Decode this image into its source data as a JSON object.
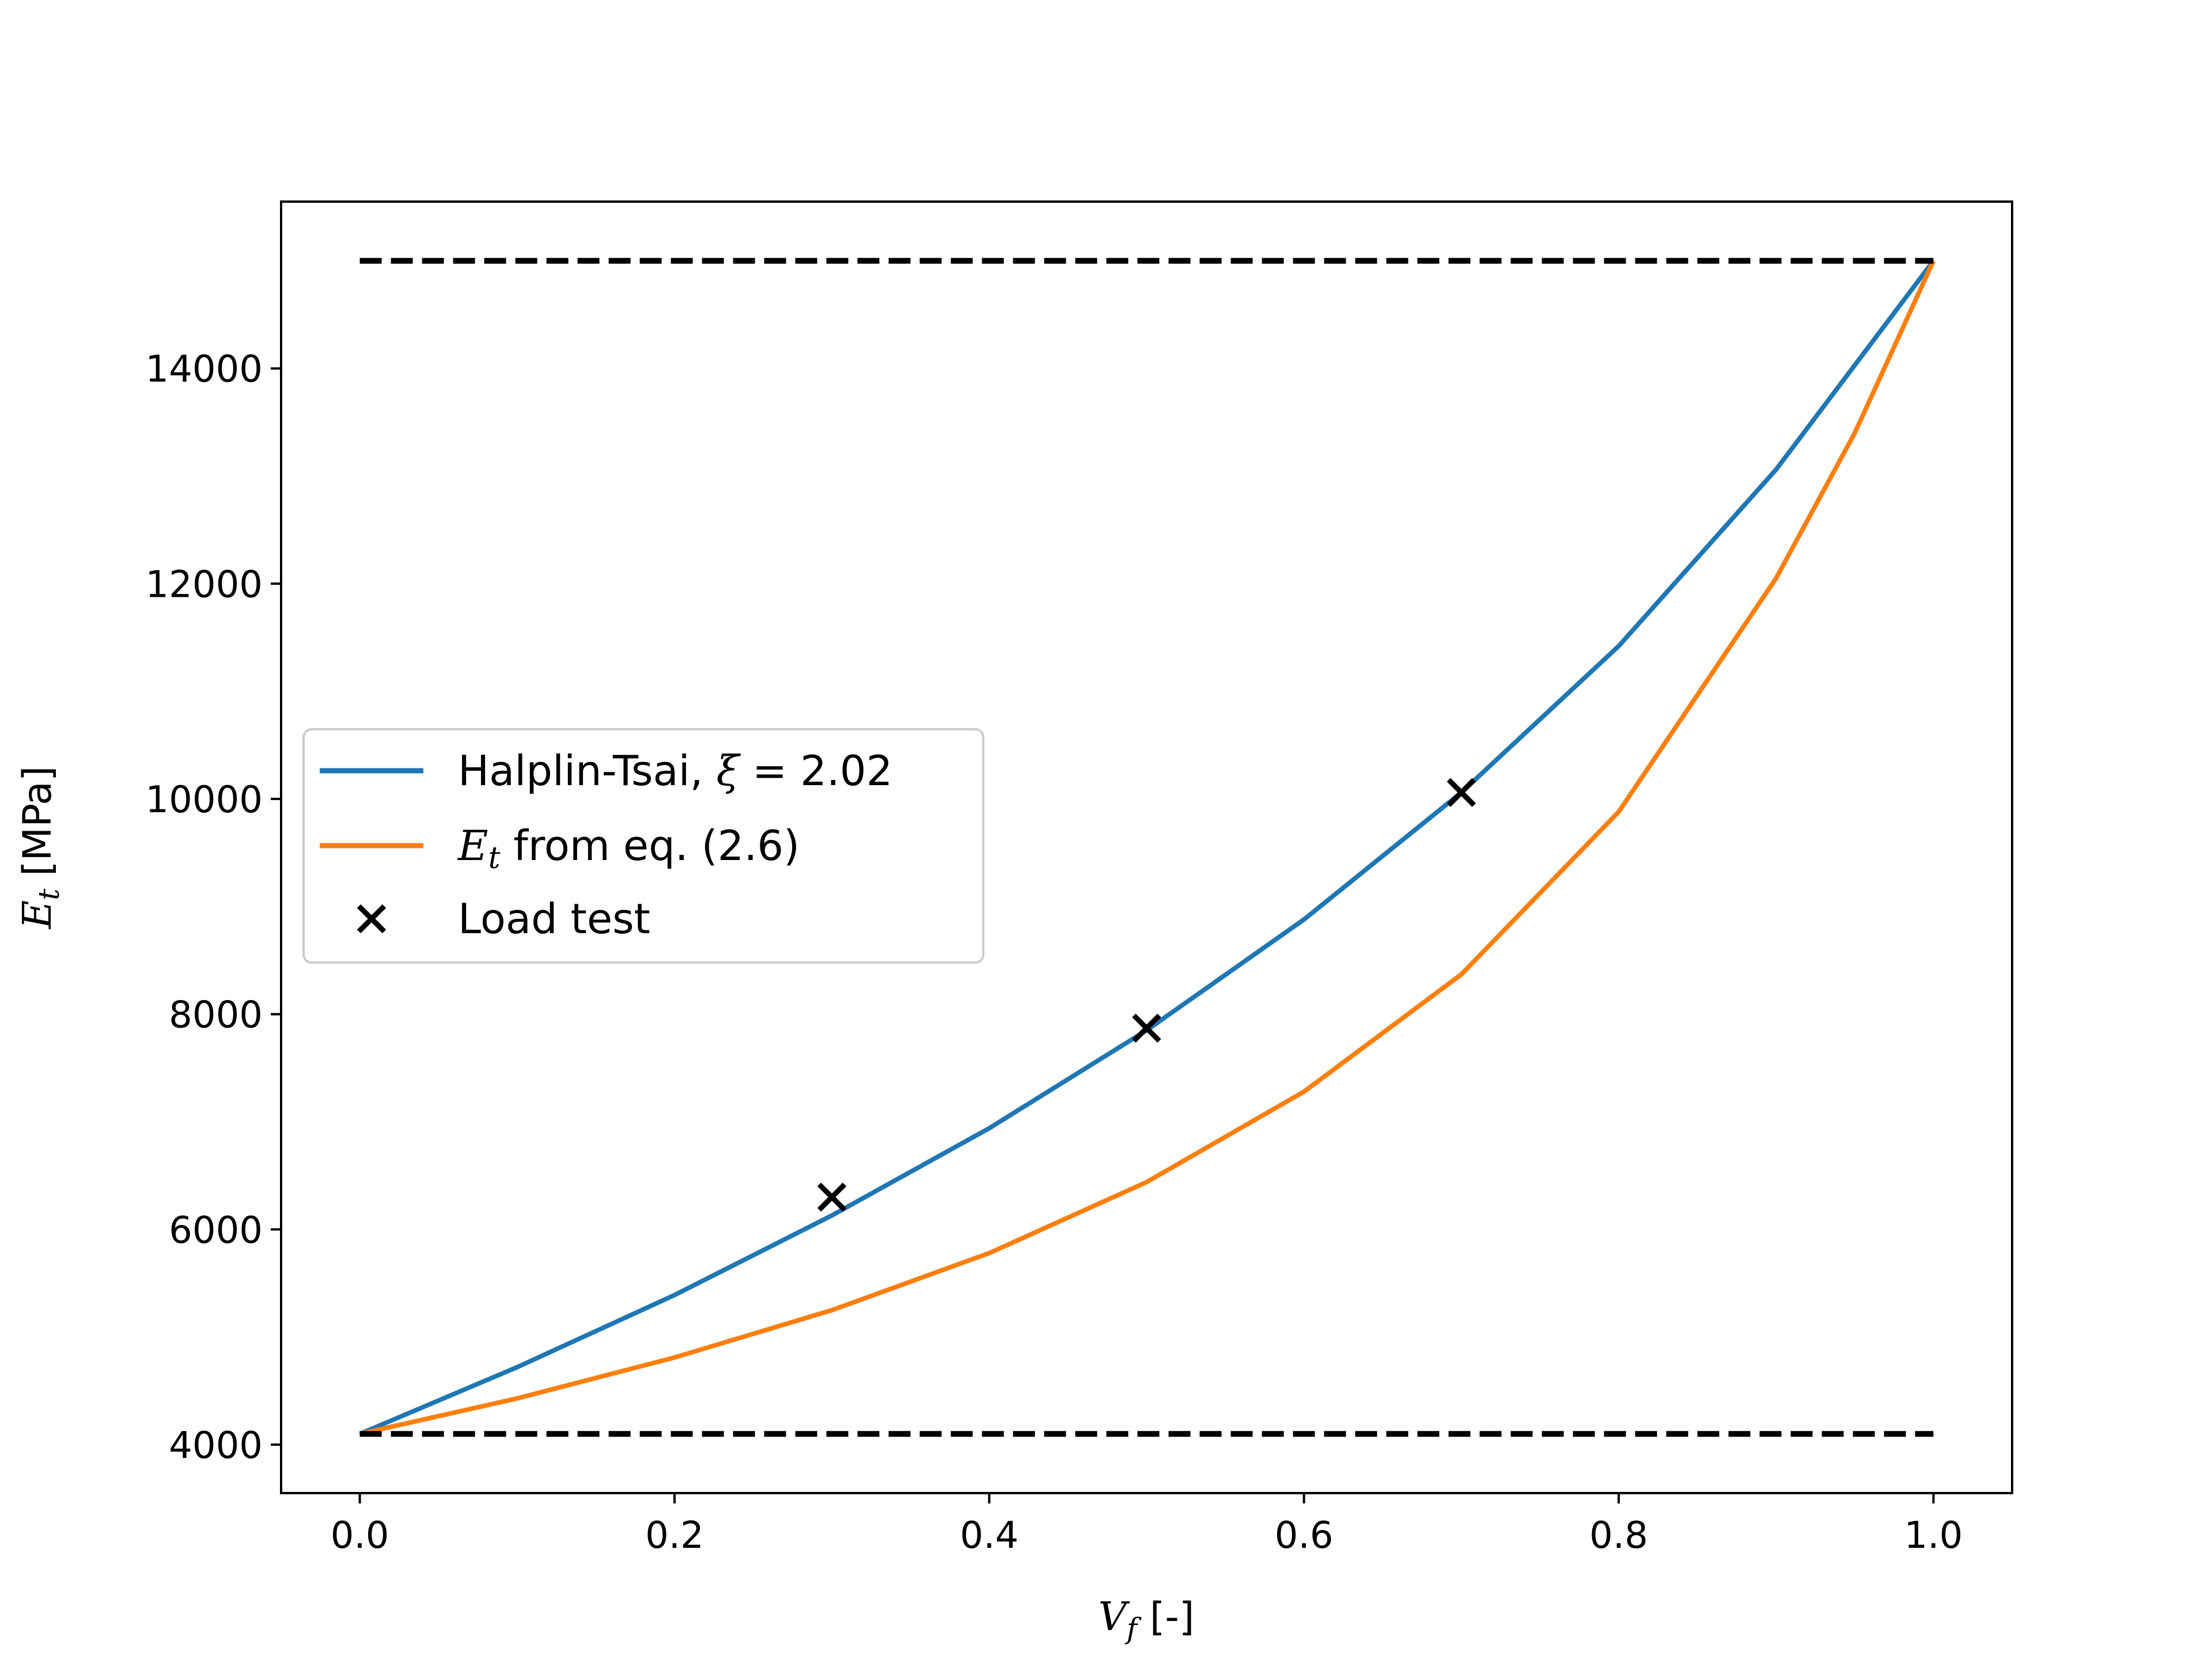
{
  "chart_data": {
    "type": "line",
    "xlabel": "V_f [-]",
    "xlabel_var": "V",
    "xlabel_sub": "f",
    "xlabel_rest": " [-]",
    "ylabel": "E_t [MPa]",
    "ylabel_var": "E",
    "ylabel_sub": "t",
    "ylabel_rest": " [MPa]",
    "xlim": [
      -0.05,
      1.05
    ],
    "ylim": [
      3550,
      15550
    ],
    "xticks": [
      0.0,
      0.2,
      0.4,
      0.6,
      0.8,
      1.0
    ],
    "xtick_labels": [
      "0.0",
      "0.2",
      "0.4",
      "0.6",
      "0.8",
      "1.0"
    ],
    "yticks": [
      4000,
      6000,
      8000,
      10000,
      12000,
      14000
    ],
    "ytick_labels": [
      "4000",
      "6000",
      "8000",
      "10000",
      "12000",
      "14000"
    ],
    "grid": false,
    "legend_position": "center-left",
    "series": [
      {
        "name": "Halplin-Tsai, ξ = 2.02",
        "legend_label": {
          "prefix": "Halplin-Tsai, ",
          "var": "ξ",
          "rest": " = 2.02"
        },
        "kind": "line",
        "color": "#1f77b4",
        "x": [
          0.0,
          0.1,
          0.2,
          0.3,
          0.4,
          0.5,
          0.6,
          0.7,
          0.8,
          0.9,
          1.0
        ],
        "y": [
          4100,
          4720,
          5390,
          6130,
          6940,
          7850,
          8880,
          10060,
          11420,
          13060,
          15000
        ]
      },
      {
        "name": "E_t from eq. (2.6)",
        "legend_label": {
          "prefix": "",
          "var": "E",
          "sub": "t",
          "rest": " from eq. (2.6)"
        },
        "kind": "line",
        "color": "#ff7f0e",
        "x": [
          0.0,
          0.1,
          0.2,
          0.3,
          0.4,
          0.5,
          0.6,
          0.7,
          0.8,
          0.9,
          0.95,
          1.0
        ],
        "y": [
          4100,
          4430,
          4810,
          5250,
          5780,
          6440,
          7280,
          8370,
          9880,
          12050,
          13400,
          15000
        ]
      },
      {
        "name": "Load test",
        "legend_label": {
          "prefix": "Load test",
          "var": "",
          "rest": ""
        },
        "kind": "scatter",
        "marker": "x",
        "color": "#000000",
        "x": [
          0.3,
          0.5,
          0.7
        ],
        "y": [
          6300,
          7870,
          10060
        ]
      },
      {
        "kind": "dashed",
        "color": "#000000",
        "x": [
          0.0,
          1.0
        ],
        "y": [
          15000,
          15000
        ]
      },
      {
        "kind": "dashed",
        "color": "#000000",
        "x": [
          0.0,
          1.0
        ],
        "y": [
          4100,
          4100
        ]
      }
    ]
  }
}
